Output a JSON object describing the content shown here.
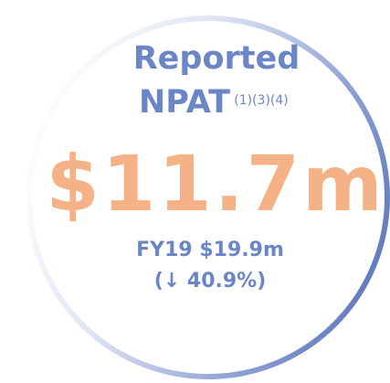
{
  "title_line1": "Reported",
  "title_line2": "NPAT",
  "superscript": "(1)(3)(4)",
  "value": "$11.7m",
  "comparison": "FY19 $19.9m",
  "change": "(↓ 40.9%)"
}
